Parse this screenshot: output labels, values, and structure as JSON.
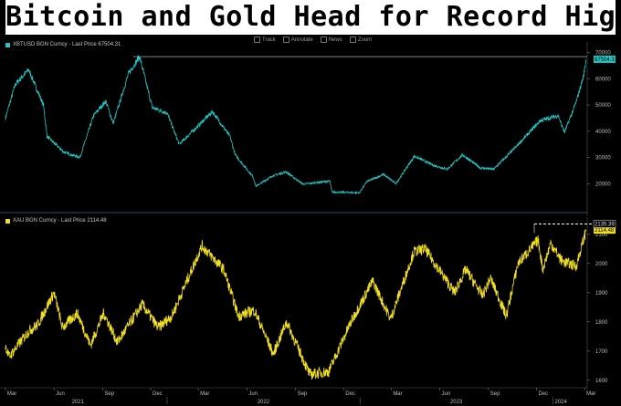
{
  "headline": "Bitcoin and Gold Head for Record Highs",
  "toolbar": {
    "track": "Track",
    "annotate": "Annotate",
    "news": "News",
    "zoom": "Zoom"
  },
  "colors": {
    "btc": "#22c6c6",
    "gold": "#f1de1e",
    "background": "#000000"
  },
  "chart_data": [
    {
      "type": "line",
      "legend": "XBTUSD BGN Curncy - Last Price 67504.31",
      "last_price_label": "67504.31",
      "ylim": [
        10000,
        72000
      ],
      "yticks": [
        "20000",
        "30000",
        "40000",
        "50000",
        "60000",
        "70000"
      ],
      "ytick_values": [
        20000,
        30000,
        40000,
        50000,
        60000,
        70000
      ],
      "grid": false,
      "series": [
        {
          "x": [
            "2021-03-01",
            "2021-03-20",
            "2021-04-14",
            "2021-05-12",
            "2021-05-19",
            "2021-06-20",
            "2021-07-20",
            "2021-08-15",
            "2021-09-07",
            "2021-09-21",
            "2021-10-20",
            "2021-11-10",
            "2021-12-04",
            "2022-01-01",
            "2022-01-24",
            "2022-03-28",
            "2022-04-30",
            "2022-05-10",
            "2022-06-13",
            "2022-06-18",
            "2022-07-20",
            "2022-08-14",
            "2022-09-15",
            "2022-11-05",
            "2022-11-09",
            "2022-12-31",
            "2023-01-14",
            "2023-02-15",
            "2023-03-10",
            "2023-04-14",
            "2023-05-20",
            "2023-06-15",
            "2023-07-14",
            "2023-08-17",
            "2023-09-11",
            "2023-10-23",
            "2023-12-08",
            "2024-01-11",
            "2024-01-23",
            "2024-02-14",
            "2024-02-28",
            "2024-03-04"
          ],
          "y": [
            45000,
            58000,
            63500,
            50000,
            38000,
            32000,
            30000,
            46000,
            51500,
            43000,
            62000,
            68500,
            49000,
            47000,
            35000,
            47500,
            38000,
            31000,
            22500,
            19000,
            23000,
            24500,
            19800,
            21000,
            16800,
            16500,
            20800,
            23500,
            20000,
            30500,
            27000,
            25500,
            31000,
            26000,
            25500,
            34000,
            44000,
            46000,
            39500,
            51000,
            61000,
            67504
          ]
        }
      ]
    },
    {
      "type": "line",
      "legend": "XAU BGN Curncy - Last Price 2114.48",
      "last_price_label": "2114.48",
      "max_label": "2135.39",
      "ylim": [
        1590,
        2140
      ],
      "yticks": [
        "1600",
        "1700",
        "1800",
        "1900",
        "2000",
        "2100"
      ],
      "ytick_values": [
        1600,
        1700,
        1800,
        1900,
        2000,
        2100
      ],
      "xticks": [
        "Mar",
        "Jun",
        "Sep",
        "Dec",
        "Mar",
        "Jun",
        "Sep",
        "Dec",
        "Mar",
        "Jun",
        "Sep",
        "Dec",
        "Mar"
      ],
      "years": [
        "2021",
        "2022",
        "2023",
        "2024"
      ],
      "grid": false,
      "series": [
        {
          "x": [
            "2021-03-01",
            "2021-03-08",
            "2021-04-15",
            "2021-05-01",
            "2021-06-01",
            "2021-06-17",
            "2021-07-15",
            "2021-08-09",
            "2021-09-03",
            "2021-09-29",
            "2021-11-15",
            "2021-12-15",
            "2022-01-10",
            "2022-03-08",
            "2022-04-18",
            "2022-05-16",
            "2022-06-15",
            "2022-07-21",
            "2022-08-15",
            "2022-09-28",
            "2022-11-03",
            "2022-12-15",
            "2023-01-25",
            "2023-02-28",
            "2023-04-13",
            "2023-05-04",
            "2023-06-29",
            "2023-07-20",
            "2023-08-21",
            "2023-09-05",
            "2023-10-05",
            "2023-10-27",
            "2023-12-04",
            "2023-12-13",
            "2023-12-28",
            "2024-01-17",
            "2024-02-14",
            "2024-03-04"
          ],
          "y": [
            1720,
            1680,
            1770,
            1790,
            1900,
            1780,
            1830,
            1720,
            1830,
            1730,
            1860,
            1780,
            1820,
            2060,
            1980,
            1820,
            1840,
            1690,
            1800,
            1620,
            1630,
            1800,
            1940,
            1810,
            2040,
            2050,
            1900,
            1980,
            1890,
            1950,
            1820,
            2000,
            2080,
            1980,
            2070,
            2010,
            1990,
            2114.48
          ]
        }
      ]
    }
  ]
}
